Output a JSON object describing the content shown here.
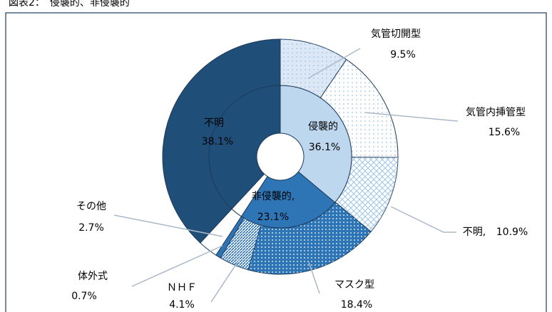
{
  "chart_data": {
    "type": "sunburst",
    "title": "図表2：　侵襲的、非侵襲的",
    "inner": {
      "names": [
        "侵襲的",
        "非侵襲的,",
        null,
        "不明"
      ],
      "values": [
        36.1,
        23.1,
        2.7,
        38.1
      ],
      "value_labels": [
        "36.1%",
        "23.1%",
        null,
        "38.1%"
      ],
      "colors": [
        "#bdd7ee",
        "#2e75b6",
        "#ffffff",
        "#1f4e79"
      ]
    },
    "outer": {
      "names": [
        "気管切開型",
        "気管内挿管型",
        "不明,",
        "マスク型",
        "ＮＨＦ",
        "体外式",
        "その他",
        null
      ],
      "values": [
        9.5,
        15.6,
        10.9,
        18.4,
        4.1,
        0.7,
        2.7,
        38.1
      ],
      "value_labels": [
        "9.5%",
        "15.6%",
        "10.9%",
        "18.4%",
        "4.1%",
        "0.7%",
        "2.7%",
        null
      ],
      "colors": [
        "#dce8f5",
        "#ffffff",
        "#ffffff",
        "#2e75b6",
        "#ffffff",
        "#2e75b6",
        "#ffffff",
        "#1f4e79"
      ]
    }
  }
}
